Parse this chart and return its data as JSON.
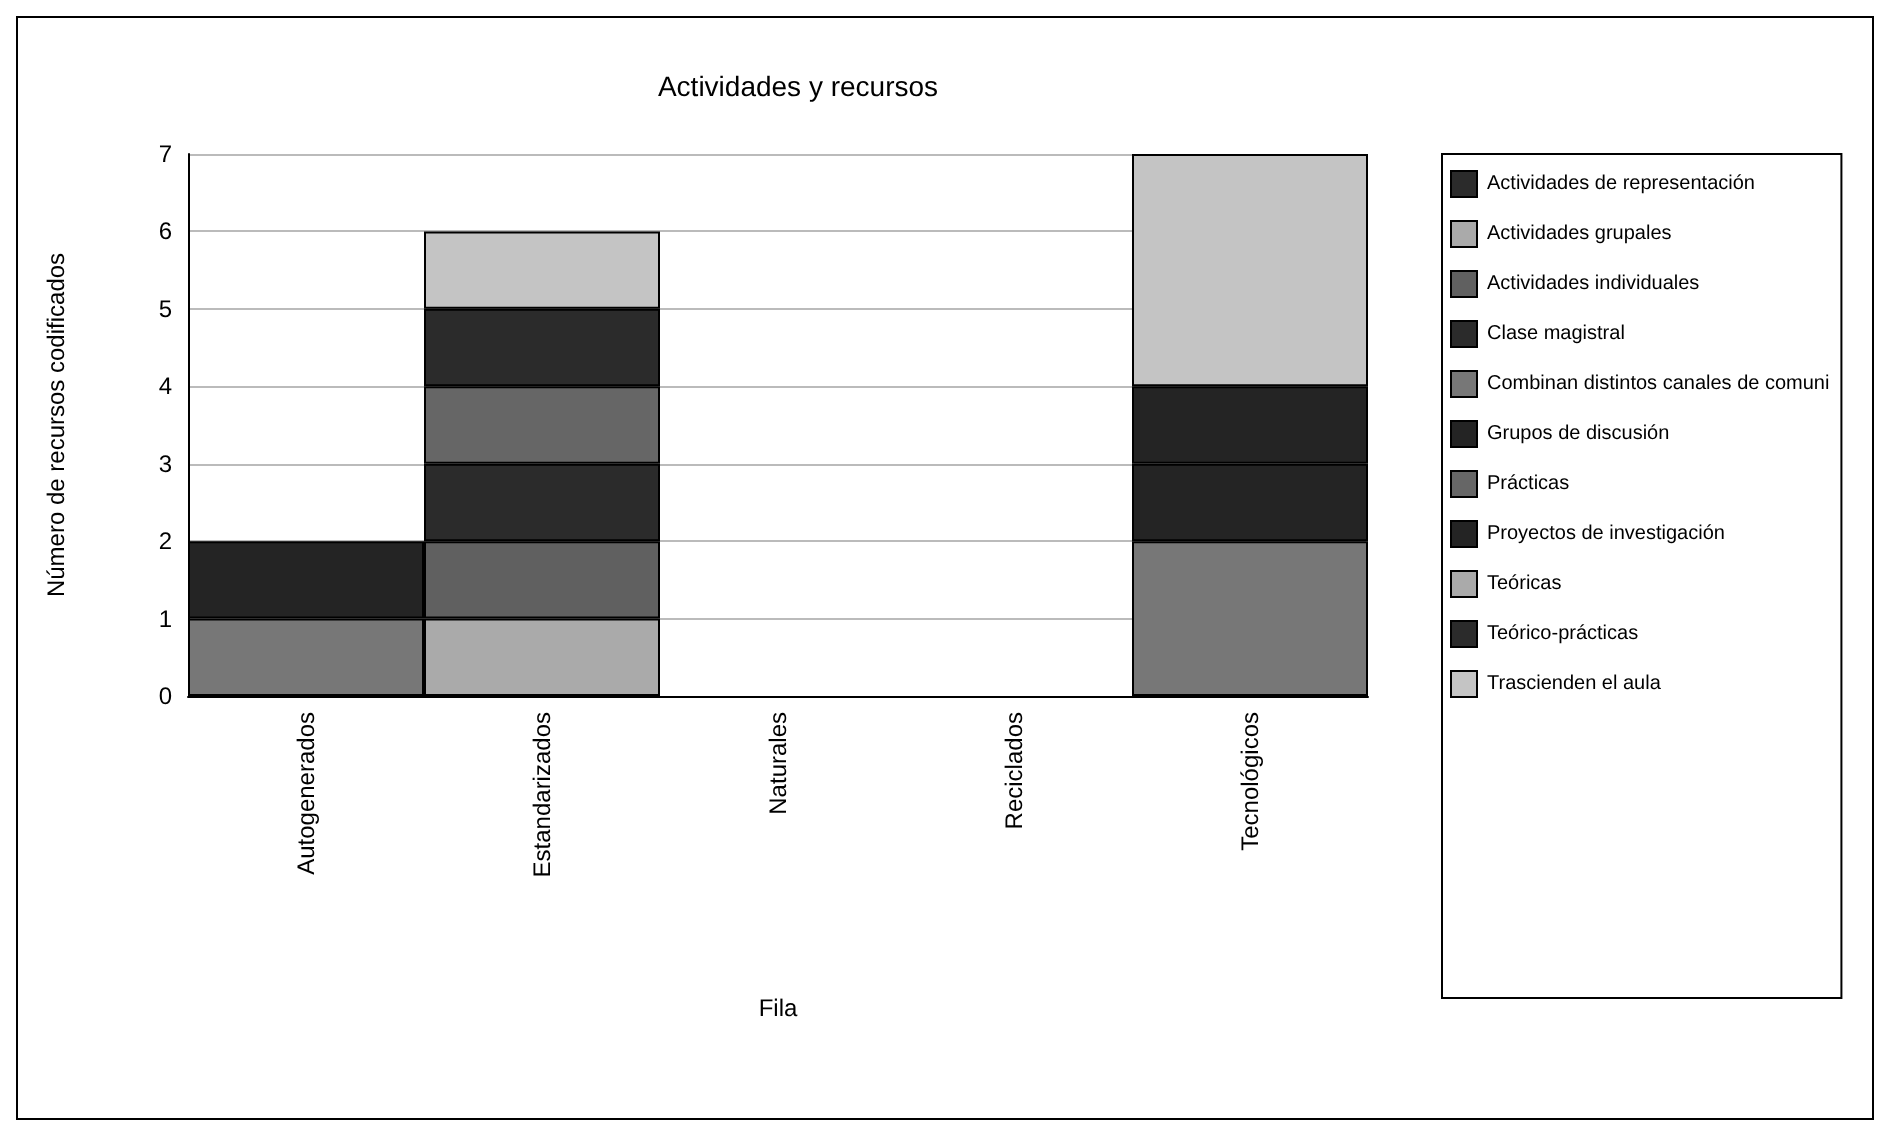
{
  "chart_data": {
    "type": "bar",
    "title": "Actividades y recursos",
    "xlabel": "Fila",
    "ylabel": "Número de recursos codificados",
    "categories": [
      "Autogenerados",
      "Estandarizados",
      "Naturales",
      "Reciclados",
      "Tecnológicos"
    ],
    "stacked": true,
    "ylim": [
      0,
      7
    ],
    "yticks": [
      0,
      1,
      2,
      3,
      4,
      5,
      6,
      7
    ],
    "grid": "y",
    "legend": "right",
    "series": [
      {
        "name": "Actividades de representación",
        "color": "#2b2b2b",
        "values": [
          null,
          null,
          null,
          null,
          null
        ]
      },
      {
        "name": "Actividades grupales",
        "color": "#aaaaaa",
        "values": [
          null,
          1,
          null,
          null,
          null
        ]
      },
      {
        "name": "Actividades individuales",
        "color": "#606060",
        "values": [
          null,
          1,
          null,
          null,
          null
        ]
      },
      {
        "name": "Clase magistral",
        "color": "#2b2b2b",
        "values": [
          null,
          1,
          null,
          null,
          null
        ]
      },
      {
        "name": "Combinan distintos canales de comuni",
        "color": "#777777",
        "values": [
          1,
          null,
          null,
          null,
          2
        ]
      },
      {
        "name": "Grupos de discusión",
        "color": "#242424",
        "values": [
          1,
          null,
          null,
          null,
          1
        ]
      },
      {
        "name": "Prácticas",
        "color": "#666666",
        "values": [
          null,
          1,
          null,
          null,
          null
        ]
      },
      {
        "name": "Proyectos de investigación",
        "color": "#242424",
        "values": [
          null,
          null,
          null,
          null,
          1
        ]
      },
      {
        "name": "Teóricas",
        "color": "#aaaaaa",
        "values": [
          null,
          null,
          null,
          null,
          null
        ]
      },
      {
        "name": "Teórico-prácticas",
        "color": "#2b2b2b",
        "values": [
          null,
          1,
          null,
          null,
          null
        ]
      },
      {
        "name": "Trascienden el aula",
        "color": "#c4c4c4",
        "values": [
          null,
          1,
          null,
          null,
          3
        ]
      }
    ]
  }
}
